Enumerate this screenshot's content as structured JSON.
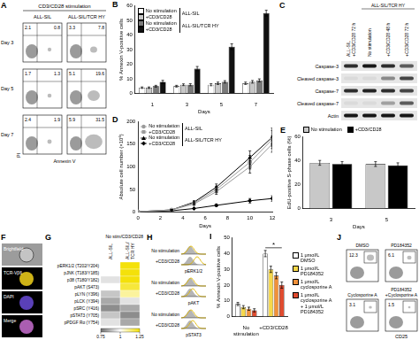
{
  "panels": {
    "A": {
      "panel": "A",
      "title": "CD3/CD28 stimulation",
      "columns": [
        "ALL-SIL",
        "ALL-SIL/TCR HY"
      ],
      "rows": [
        "Day 3",
        "Day 5",
        "Day 7"
      ],
      "x_label": "Annexin V",
      "y_label": "PI",
      "quadrant_values": [
        [
          [
            2.1,
            0.8
          ],
          [
            3.3,
            7.8
          ]
        ],
        [
          [
            1.7,
            1.3
          ],
          [
            5.1,
            19.6
          ]
        ],
        [
          [
            2.4,
            1.9
          ],
          [
            5.9,
            31.5
          ]
        ]
      ]
    },
    "C": {
      "panel": "C",
      "lanes": [
        {
          "lines": [
            "ALL-SIL",
            "+CD3/CD28 72 h"
          ],
          "group": null
        },
        {
          "lines": [
            "No stimulation"
          ],
          "group": "ALL-SIL/TCR HY"
        },
        {
          "lines": [
            "+CD3/CD28 48 h"
          ],
          "group": "ALL-SIL/TCR HY"
        },
        {
          "lines": [
            "+CD3/CD28 72 h"
          ],
          "group": "ALL-SIL/TCR HY"
        }
      ],
      "blots": [
        {
          "label": "Caspase-3",
          "bands": [
            0.8,
            0.9,
            0.8,
            0.6
          ]
        },
        {
          "label": "Cleaved caspase-3",
          "bands": [
            0.05,
            0.05,
            0.4,
            0.7
          ]
        },
        {
          "label": "Caspase-7",
          "bands": [
            0.8,
            0.85,
            0.8,
            0.7
          ]
        },
        {
          "label": "Cleaved caspase-7",
          "bands": [
            0.05,
            0.05,
            0.3,
            0.6
          ]
        },
        {
          "label": "Actin",
          "bands": [
            0.9,
            0.9,
            0.9,
            0.9
          ]
        }
      ]
    },
    "F": {
      "panel": "F",
      "images": [
        {
          "label": "Brightfield",
          "color": "#9c9c9c"
        },
        {
          "label": "TCR-Vβ6",
          "color": "#f2d21b"
        },
        {
          "label": "DAPI",
          "color": "#6a4bd8"
        },
        {
          "label": "Merge",
          "color": "#c86fd0"
        }
      ]
    },
    "G": {
      "panel": "G",
      "header": "No stim/CD3/CD28",
      "columns": [
        [
          "ALL-SIL"
        ],
        [
          "ALL-SIL/",
          "TCR HY"
        ]
      ],
      "rows": [
        "pERK1/2 (T202/Y204)",
        "pJNK (T183/Y185)",
        "p38 (T180/Y182)",
        "pAKT (S473)",
        "pLYN (Y396)",
        "pLCK (Y394)",
        "pSRC (Y416)",
        "pSTAT3 (Y705)",
        "pPDGF Rα (Y754)"
      ],
      "cells": [
        [
          1.0,
          1.3
        ],
        [
          1.0,
          1.3
        ],
        [
          0.95,
          1.25
        ],
        [
          1.0,
          1.2
        ],
        [
          0.9,
          1.1
        ],
        [
          0.85,
          0.95
        ],
        [
          0.8,
          0.85
        ],
        [
          0.9,
          0.8
        ],
        [
          0.95,
          0.85
        ]
      ],
      "colorbar": {
        "range": [
          0.75,
          1.25
        ],
        "ticks": [
          0.75,
          1,
          1.25
        ],
        "colors": [
          "#707070",
          "#ffffff",
          "#f4e10a"
        ]
      }
    },
    "H": {
      "panel": "H",
      "conditions": [
        "No stimulation",
        "+CD3/CD28"
      ],
      "markers": [
        "pERK1/2",
        "pAKT",
        "pSTAT3"
      ]
    },
    "J": {
      "panel": "J",
      "x_label": "CD25",
      "plots": [
        {
          "title": [
            "DMSO"
          ],
          "value": 12.3
        },
        {
          "title": [
            "PD184352"
          ],
          "value": 6.1
        },
        {
          "title": [
            "Cyclosporine A"
          ],
          "value": 3.1
        },
        {
          "title": [
            "PD184352",
            "+Cyclosporine A"
          ],
          "value": 1.5
        }
      ]
    }
  },
  "chart_data": [
    {
      "panel": "B",
      "type": "bar",
      "categories": [
        1,
        3,
        5,
        7
      ],
      "x_label": "Days",
      "y_label": "% Annexin V-positive cells",
      "ylim": [
        0,
        60
      ],
      "yticks": [
        0,
        10,
        20,
        30,
        40,
        50,
        60
      ],
      "grid": false,
      "legend": "upper left",
      "series": [
        {
          "name": "No stimulation",
          "group": "ALL-SIL",
          "color": "#ffffff",
          "values": [
            4,
            5,
            6,
            7
          ],
          "errors": [
            0.5,
            0.6,
            0.7,
            0.8
          ]
        },
        {
          "name": "+CD3/CD28",
          "group": "ALL-SIL",
          "color": "#c8c8c8",
          "values": [
            4,
            6,
            7,
            8
          ],
          "errors": [
            0.5,
            0.6,
            0.8,
            0.9
          ]
        },
        {
          "name": "No stimulation",
          "group": "ALL-SIL/TCR HY",
          "color": "#7a7a7a",
          "values": [
            5,
            6,
            8,
            9
          ],
          "errors": [
            0.6,
            0.7,
            0.8,
            1
          ]
        },
        {
          "name": "+CD3/CD28",
          "group": "ALL-SIL/TCR HY",
          "color": "#111111",
          "values": [
            8,
            17,
            32,
            55
          ],
          "errors": [
            1,
            1.5,
            2,
            2
          ]
        }
      ]
    },
    {
      "panel": "D",
      "type": "line",
      "x": [
        0,
        3,
        5,
        7,
        10,
        12
      ],
      "xlim": [
        0,
        12
      ],
      "xticks": [
        0,
        2,
        4,
        6,
        8,
        10,
        12
      ],
      "ylim": [
        0,
        200
      ],
      "yticks": [
        0,
        50,
        100,
        150,
        200
      ],
      "x_label": "Days",
      "y_label": "Absolute cell number (×10⁶)",
      "grid": false,
      "legend": "upper left",
      "series": [
        {
          "name": "No stimulation",
          "group": "ALL-SIL",
          "color": "#9a9a9a",
          "marker": "circle",
          "values": [
            1,
            5,
            20,
            50,
            110,
            160
          ],
          "errors": [
            0,
            1,
            3,
            6,
            15,
            20
          ]
        },
        {
          "name": "+CD3/CD28",
          "group": "ALL-SIL",
          "color": "#9a9a9a",
          "marker": "square",
          "values": [
            1,
            5,
            18,
            45,
            100,
            150
          ],
          "errors": [
            0,
            1,
            3,
            6,
            14,
            18
          ]
        },
        {
          "name": "No stimulation",
          "group": "ALL-SIL/TCR HY",
          "color": "#000000",
          "marker": "triangle",
          "values": [
            1,
            5,
            22,
            55,
            120,
            165
          ],
          "errors": [
            0,
            1,
            3,
            7,
            15,
            20
          ]
        },
        {
          "name": "+CD3/CD28",
          "group": "ALL-SIL/TCR HY",
          "color": "#000000",
          "marker": "diamond",
          "values": [
            1,
            3,
            8,
            15,
            25,
            30
          ],
          "errors": [
            0,
            1,
            2,
            3,
            5,
            6
          ]
        }
      ]
    },
    {
      "panel": "E",
      "type": "bar",
      "categories": [
        3,
        5
      ],
      "x_label": "Days",
      "y_label": "EdU-positive S-phase cells (%)",
      "ylim": [
        0,
        60
      ],
      "yticks": [
        0,
        20,
        40,
        60
      ],
      "grid": false,
      "legend": "top",
      "series": [
        {
          "name": "No stimulation",
          "color": "#c8c8c8",
          "values": [
            38,
            37
          ],
          "errors": [
            2,
            2
          ]
        },
        {
          "name": "+CD3/CD28",
          "color": "#000000",
          "values": [
            37,
            36
          ],
          "errors": [
            2,
            2
          ]
        }
      ]
    },
    {
      "panel": "I",
      "type": "bar",
      "categories": [
        "No stimulation",
        "+CD3/CD28"
      ],
      "y_label": "% Annexin V-positive cells",
      "ylim": [
        0,
        50
      ],
      "yticks": [
        0,
        10,
        20,
        30,
        40,
        50
      ],
      "grid": false,
      "legend": "right",
      "annotations": [
        {
          "text": "*",
          "category": "+CD3/CD28"
        }
      ],
      "series": [
        {
          "name": "1 μmol/L DMSO",
          "color": "#ffffff",
          "values": [
            8,
            40
          ],
          "errors": [
            1,
            2
          ]
        },
        {
          "name": "1 μmol/L PD184352",
          "color": "#f7d84a",
          "values": [
            6,
            30
          ],
          "errors": [
            1,
            2
          ]
        },
        {
          "name": "1 μmol/L cyclosporine A",
          "color": "#f0913a",
          "values": [
            5,
            26
          ],
          "errors": [
            1,
            2
          ]
        },
        {
          "name": "1 μmol/L cyclosporine A + 1 μmol/L PD184352",
          "color": "#e04b2f",
          "values": [
            4,
            20
          ],
          "errors": [
            1,
            2
          ]
        }
      ]
    }
  ]
}
